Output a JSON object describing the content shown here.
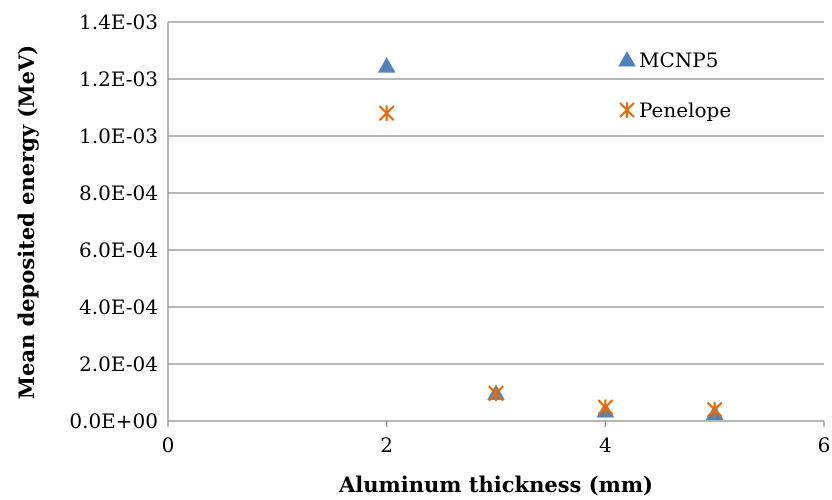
{
  "chart_data": {
    "type": "scatter",
    "title": "",
    "xlabel": "Aluminum thickness (mm)",
    "ylabel": "Mean deposited energy (MeV)",
    "xlim": [
      0,
      6
    ],
    "ylim": [
      0,
      0.0014
    ],
    "x_ticks": [
      {
        "value": 0,
        "label": "0"
      },
      {
        "value": 2,
        "label": "2"
      },
      {
        "value": 4,
        "label": "4"
      },
      {
        "value": 6,
        "label": "6"
      }
    ],
    "y_ticks": [
      {
        "value": 0,
        "label": "0.0E+00"
      },
      {
        "value": 0.0002,
        "label": "2.0E-04"
      },
      {
        "value": 0.0004,
        "label": "4.0E-04"
      },
      {
        "value": 0.0006,
        "label": "6.0E-04"
      },
      {
        "value": 0.0008,
        "label": "8.0E-04"
      },
      {
        "value": 0.001,
        "label": "1.0E-03"
      },
      {
        "value": 0.0012,
        "label": "1.2E-03"
      },
      {
        "value": 0.0014,
        "label": "1.4E-03"
      }
    ],
    "grid": "horizontal",
    "legend_position": "top-right",
    "series": [
      {
        "name": "MCNP5",
        "marker": "triangle",
        "color": "#4f81bd",
        "points": [
          {
            "x": 2,
            "y": 0.001245
          },
          {
            "x": 3,
            "y": 9.68e-05
          },
          {
            "x": 4,
            "y": 3.52e-05
          },
          {
            "x": 5,
            "y": 2.64e-05
          }
        ]
      },
      {
        "name": "Penelope",
        "marker": "star",
        "color": "#e46c0a",
        "points": [
          {
            "x": 2,
            "y": 0.00108
          },
          {
            "x": 3,
            "y": 9.68e-05
          },
          {
            "x": 4,
            "y": 4.84e-05
          },
          {
            "x": 5,
            "y": 3.96e-05
          }
        ]
      }
    ]
  }
}
